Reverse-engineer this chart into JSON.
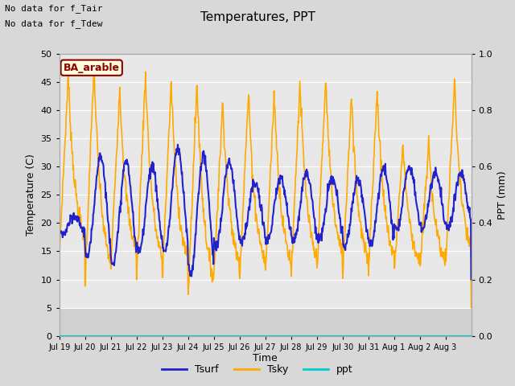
{
  "title": "Temperatures, PPT",
  "xlabel": "Time",
  "ylabel_left": "Temperature (C)",
  "ylabel_right": "PPT (mm)",
  "note1": "No data for f_Tair",
  "note2": "No data for f_Tdew",
  "field_label": "BA_arable",
  "ylim_left": [
    0,
    50
  ],
  "ylim_right": [
    0.0,
    1.0
  ],
  "xlim": [
    0,
    16
  ],
  "outer_bg": "#d8d8d8",
  "inner_bg": "#e8e8e8",
  "band_bg": "#d0d0d0",
  "tsurf_color": "#2222cc",
  "tsky_color": "#ffaa00",
  "ppt_color": "#00cccc",
  "grid_color": "#ffffff",
  "tick_labels": [
    "Jul 19",
    "Jul 20",
    "Jul 21",
    "Jul 22",
    "Jul 23",
    "Jul 24",
    "Jul 25",
    "Jul 26",
    "Jul 27",
    "Jul 28",
    "Jul 29",
    "Jul 30",
    "Jul 31",
    "Aug 1",
    "Aug 2",
    "Aug 3"
  ],
  "yticks_left": [
    0,
    5,
    10,
    15,
    20,
    25,
    30,
    35,
    40,
    45,
    50
  ],
  "yticks_right": [
    0.0,
    0.2,
    0.4,
    0.6,
    0.8,
    1.0
  ],
  "n_points": 960,
  "tsky_daily_peaks": [
    46,
    48,
    44,
    46.5,
    45,
    45,
    41.5,
    43,
    43,
    45,
    45.5,
    43,
    43.5,
    34,
    34,
    45
  ],
  "tsky_daily_mins": [
    14,
    9,
    12,
    10,
    10,
    6.5,
    10,
    10,
    10,
    10,
    11,
    10,
    11,
    11,
    11,
    12
  ],
  "tsurf_daily_peaks": [
    21,
    32,
    31,
    30,
    33,
    32,
    31,
    27,
    28,
    29,
    28,
    28,
    30,
    30,
    29,
    29
  ],
  "tsurf_daily_mins": [
    18,
    14,
    13,
    15,
    15,
    11,
    16,
    17,
    17,
    17,
    17,
    16,
    16,
    19,
    19,
    19
  ]
}
